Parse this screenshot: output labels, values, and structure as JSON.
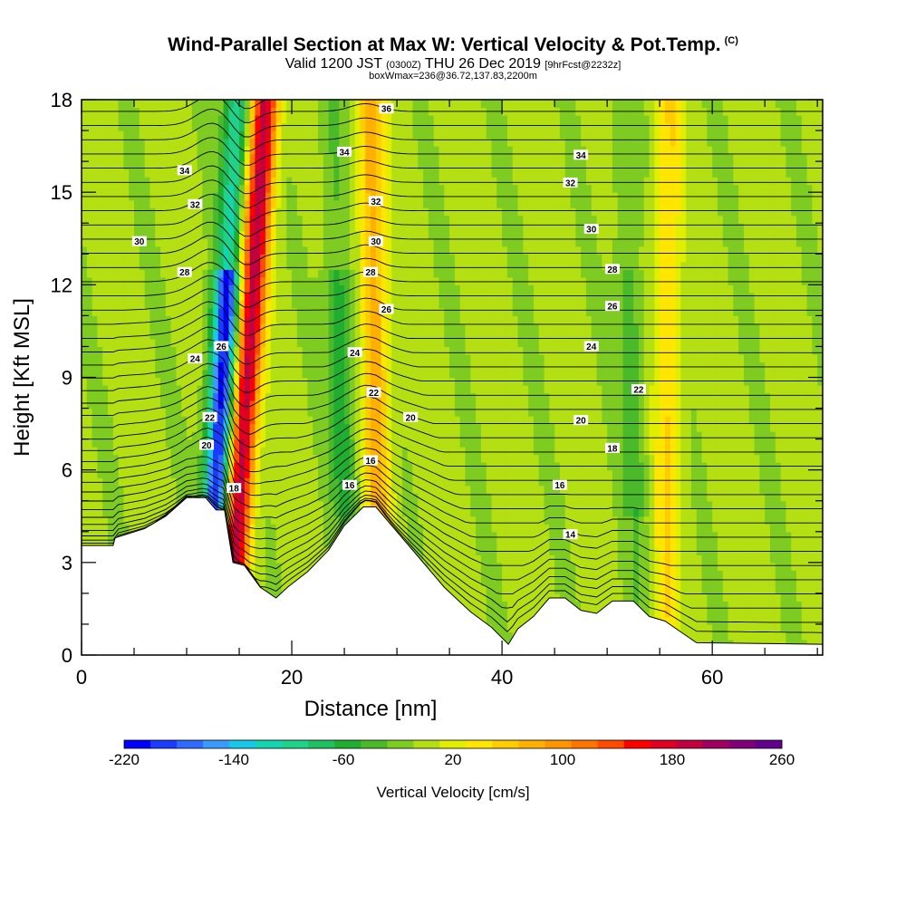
{
  "header": {
    "title": "Wind-Parallel Section at Max W: Vertical Velocity & Pot.Temp.",
    "copyright": "(C)",
    "valid_prefix": "Valid 1200 JST",
    "valid_utc": "(0300Z)",
    "valid_date": "THU 26 Dec 2019",
    "forecast": "[9hrFcst@2232z]",
    "box_info": "boxWmax=236@36.72,137.83,2200m"
  },
  "chart_data": {
    "type": "heatmap",
    "title": "Wind-Parallel Section at Max W: Vertical Velocity & Pot.Temp.",
    "xlabel": "Distance [nm]",
    "ylabel": "Height [Kft MSL]",
    "xlim": [
      0,
      70.5
    ],
    "ylim": [
      0,
      18
    ],
    "xticks": [
      0,
      20,
      40,
      60
    ],
    "yticks": [
      0,
      3,
      6,
      9,
      12,
      15,
      18
    ],
    "colorbar": {
      "label": "Vertical Velocity [cm/s]",
      "min": -220,
      "max": 260,
      "step": 20,
      "tick_labels": [
        -220,
        -140,
        -60,
        20,
        100,
        180,
        260
      ],
      "colors": [
        "#0000ff",
        "#1a3cff",
        "#2f6bff",
        "#3a9bff",
        "#19c8e8",
        "#13d6b0",
        "#1ed28a",
        "#20c060",
        "#1fae2f",
        "#4aba2b",
        "#7ecb22",
        "#b4df12",
        "#e2ee00",
        "#ffe600",
        "#ffcc00",
        "#ffb000",
        "#ff9600",
        "#ff7400",
        "#ff4a00",
        "#ff0000",
        "#e00022",
        "#c00040",
        "#a00060",
        "#80007a",
        "#60008c"
      ]
    },
    "terrain_top_kft": [
      [
        0,
        3.55
      ],
      [
        3,
        3.55
      ],
      [
        3.2,
        3.8
      ],
      [
        6,
        4.1
      ],
      [
        8,
        4.5
      ],
      [
        10,
        5.1
      ],
      [
        11.8,
        5.1
      ],
      [
        12.8,
        4.7
      ],
      [
        13.6,
        4.7
      ],
      [
        14.4,
        3.0
      ],
      [
        15.5,
        2.9
      ],
      [
        17,
        2.2
      ],
      [
        18.5,
        1.85
      ],
      [
        19.6,
        2.2
      ],
      [
        21.5,
        2.7
      ],
      [
        23.5,
        3.4
      ],
      [
        25,
        4.2
      ],
      [
        26.8,
        4.8
      ],
      [
        28,
        4.8
      ],
      [
        29.5,
        4.2
      ],
      [
        32,
        3.2
      ],
      [
        34.5,
        2.2
      ],
      [
        37,
        1.4
      ],
      [
        39,
        0.9
      ],
      [
        40.6,
        0.35
      ],
      [
        41.5,
        0.85
      ],
      [
        43,
        1.25
      ],
      [
        44.5,
        1.85
      ],
      [
        46,
        1.85
      ],
      [
        47.5,
        1.45
      ],
      [
        49,
        1.35
      ],
      [
        50.5,
        1.75
      ],
      [
        52.5,
        1.75
      ],
      [
        54,
        1.25
      ],
      [
        55.5,
        1.1
      ],
      [
        57,
        0.75
      ],
      [
        58.5,
        0.4
      ],
      [
        70.5,
        0.35
      ]
    ],
    "updraft_bands": [
      {
        "name": "",
        "x_base": 14.0,
        "x_top": 17.5,
        "w_max": 210
      },
      {
        "name": "",
        "x_base": 28.5,
        "x_top": 27.5,
        "w_max": 90
      },
      {
        "name": "",
        "x_base": 55.5,
        "x_top": 56.0,
        "w_max": 55
      }
    ],
    "downdraft_bands": [
      {
        "name": "",
        "x_base": 12.0,
        "x_top": 14.8,
        "w_min": -215
      },
      {
        "name": "",
        "x_base": 25.5,
        "x_top": 23.8,
        "w_min": -55
      },
      {
        "name": "",
        "x_base": 53.0,
        "x_top": 51.5,
        "w_min": -40
      }
    ],
    "theta_contour_labels": [
      {
        "value": "36",
        "x": 29.0,
        "y": 17.7
      },
      {
        "value": "34",
        "x": 9.8,
        "y": 15.7
      },
      {
        "value": "34",
        "x": 25.0,
        "y": 16.3
      },
      {
        "value": "34",
        "x": 47.5,
        "y": 16.2
      },
      {
        "value": "32",
        "x": 10.8,
        "y": 14.6
      },
      {
        "value": "32",
        "x": 28.0,
        "y": 14.7
      },
      {
        "value": "32",
        "x": 46.5,
        "y": 15.3
      },
      {
        "value": "30",
        "x": 5.5,
        "y": 13.4
      },
      {
        "value": "30",
        "x": 28.0,
        "y": 13.4
      },
      {
        "value": "30",
        "x": 48.5,
        "y": 13.8
      },
      {
        "value": "28",
        "x": 9.8,
        "y": 12.4
      },
      {
        "value": "28",
        "x": 27.5,
        "y": 12.4
      },
      {
        "value": "28",
        "x": 50.5,
        "y": 12.5
      },
      {
        "value": "26",
        "x": 29.0,
        "y": 11.2
      },
      {
        "value": "26",
        "x": 50.5,
        "y": 11.3
      },
      {
        "value": "26",
        "x": 13.3,
        "y": 10.0
      },
      {
        "value": "24",
        "x": 10.8,
        "y": 9.6
      },
      {
        "value": "24",
        "x": 26.0,
        "y": 9.8
      },
      {
        "value": "24",
        "x": 48.5,
        "y": 10.0
      },
      {
        "value": "22",
        "x": 12.2,
        "y": 7.7
      },
      {
        "value": "22",
        "x": 27.8,
        "y": 8.5
      },
      {
        "value": "22",
        "x": 53.0,
        "y": 8.6
      },
      {
        "value": "20",
        "x": 11.9,
        "y": 6.8
      },
      {
        "value": "20",
        "x": 31.3,
        "y": 7.7
      },
      {
        "value": "20",
        "x": 47.5,
        "y": 7.6
      },
      {
        "value": "18",
        "x": 14.5,
        "y": 5.4
      },
      {
        "value": "18",
        "x": 50.5,
        "y": 6.7
      },
      {
        "value": "16",
        "x": 27.5,
        "y": 6.3
      },
      {
        "value": "16",
        "x": 25.5,
        "y": 5.5
      },
      {
        "value": "16",
        "x": 45.5,
        "y": 5.5
      },
      {
        "value": "14",
        "x": 46.5,
        "y": 3.9
      }
    ]
  }
}
